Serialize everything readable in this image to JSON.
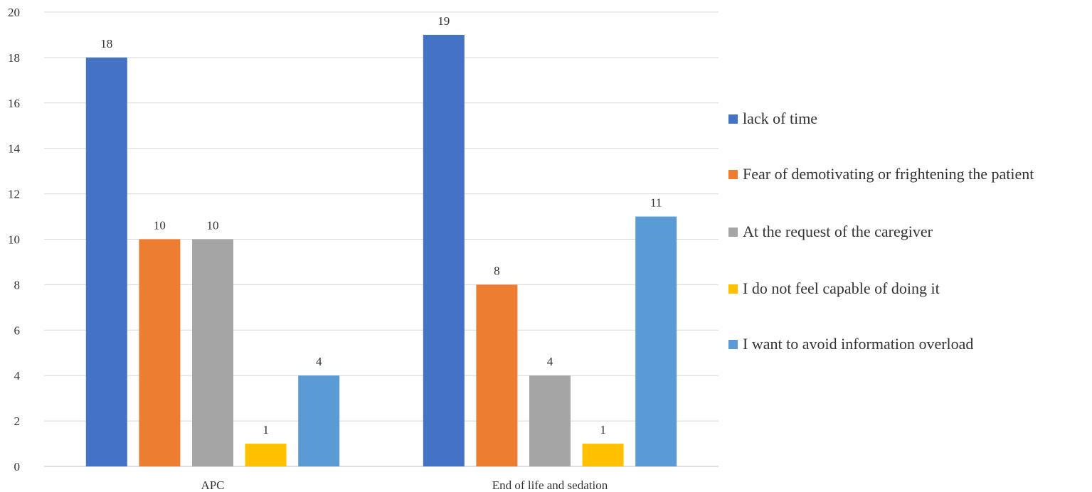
{
  "chart_data": {
    "type": "bar",
    "title": "",
    "xlabel": "",
    "ylabel": "",
    "categories": [
      "APC",
      "End of life and sedation"
    ],
    "series": [
      {
        "name": "lack of time",
        "color": "#4472C4",
        "values": [
          18,
          19
        ]
      },
      {
        "name": "Fear of demotivating or frightening the patient",
        "color": "#ED7D31",
        "values": [
          10,
          8
        ]
      },
      {
        "name": "At the request of the caregiver",
        "color": "#A5A5A5",
        "values": [
          10,
          4
        ]
      },
      {
        "name": "I do not feel capable of doing it",
        "color": "#FFC000",
        "values": [
          1,
          1
        ]
      },
      {
        "name": "I want to avoid information overload",
        "color": "#5B9BD5",
        "values": [
          4,
          11
        ]
      }
    ],
    "ylim": [
      0,
      20
    ],
    "yticks": [
      "0",
      "2",
      "4",
      "6",
      "8",
      "10",
      "12",
      "14",
      "16",
      "18",
      "20"
    ],
    "grid": true,
    "legend_position": "right"
  }
}
